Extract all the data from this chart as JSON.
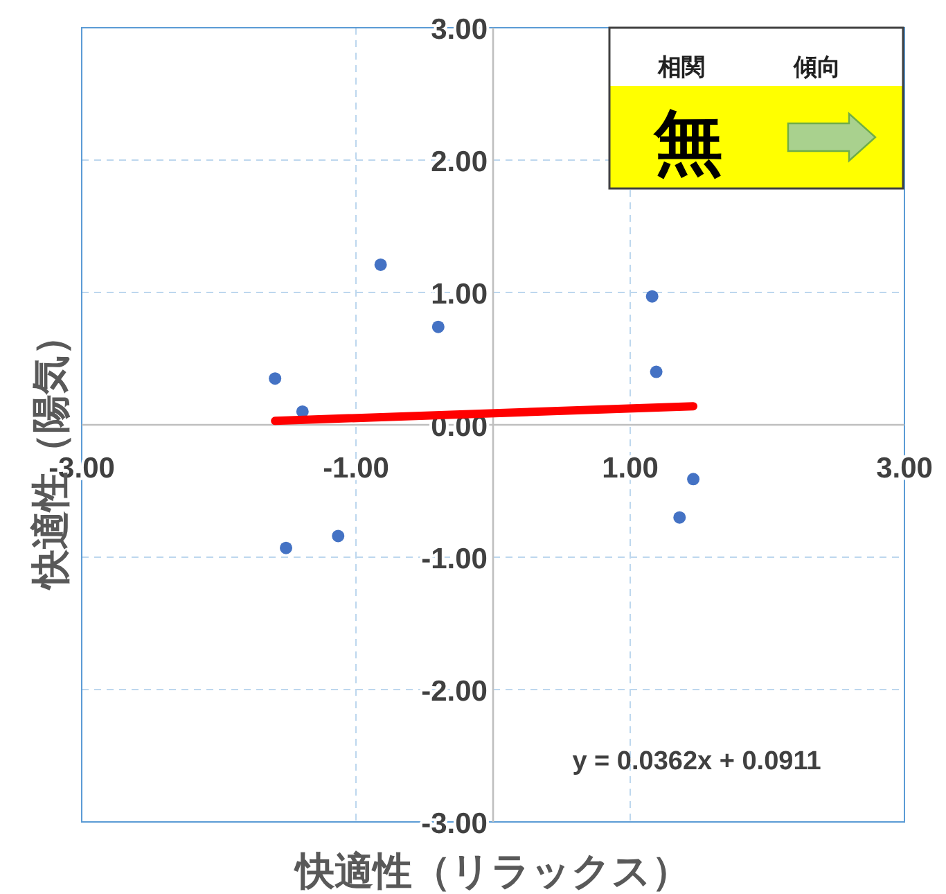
{
  "chart_data": {
    "type": "scatter",
    "xlabel": "快適性（リラックス）",
    "ylabel": "快適性（陽気）",
    "xlim": [
      -3,
      3
    ],
    "ylim": [
      -3,
      3
    ],
    "xticks": [
      {
        "value": -3,
        "label": "-3.00"
      },
      {
        "value": -1,
        "label": "-1.00"
      },
      {
        "value": 1,
        "label": "1.00"
      },
      {
        "value": 3,
        "label": "3.00"
      }
    ],
    "yticks": [
      {
        "value": -3,
        "label": "-3.00"
      },
      {
        "value": -2,
        "label": "-2.00"
      },
      {
        "value": -1,
        "label": "-1.00"
      },
      {
        "value": 0,
        "label": "0.00"
      },
      {
        "value": 1,
        "label": "1.00"
      },
      {
        "value": 2,
        "label": "2.00"
      },
      {
        "value": 3,
        "label": "3.00"
      }
    ],
    "grid": true,
    "marker": "circle",
    "series": [
      {
        "color": "#4472c4",
        "x": [
          -1.59,
          -1.39,
          -1.51,
          -1.13,
          -0.82,
          -0.4,
          1.16,
          1.19,
          1.46,
          1.36
        ],
        "values": [
          0.35,
          0.1,
          -0.93,
          -0.84,
          1.21,
          0.74,
          0.97,
          0.4,
          -0.41,
          -0.7
        ]
      },
      {
        "type": "line",
        "marker": "none",
        "color": "#ff0000",
        "x": [
          -1.59,
          1.46
        ],
        "values": [
          0.03,
          0.14
        ]
      }
    ],
    "annotations": [
      "相関",
      "傾向",
      "無",
      "y = 0.0362x + 0.0911"
    ]
  }
}
